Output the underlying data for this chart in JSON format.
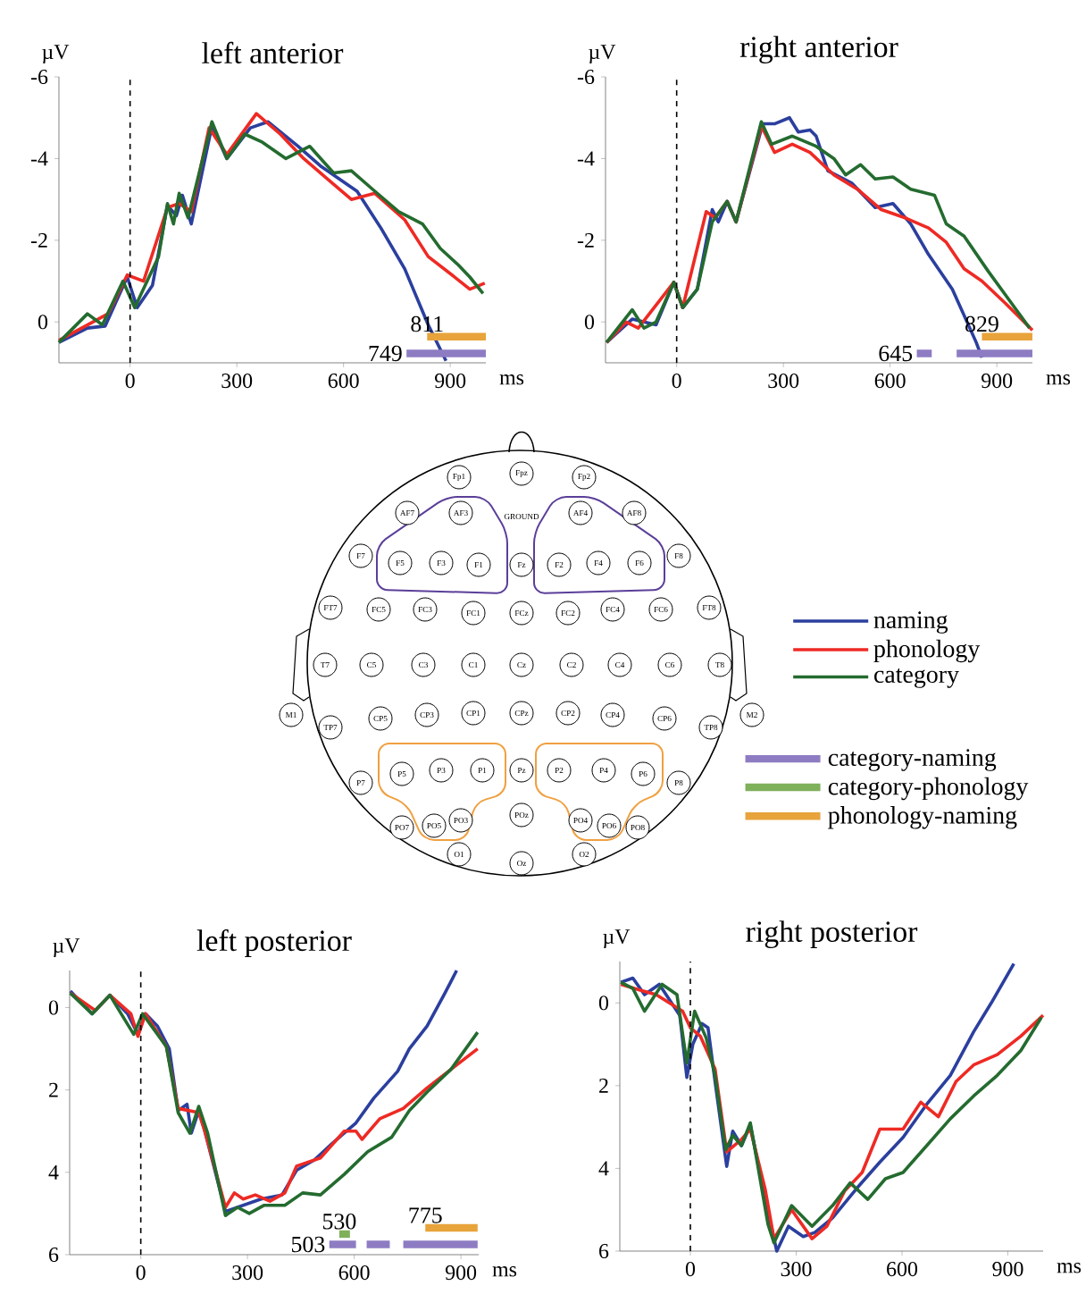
{
  "chart_data": [
    {
      "type": "line",
      "title": "left anterior",
      "xlabel": "ms",
      "ylabel": "µV",
      "xlim": [
        -200,
        1000
      ],
      "ylim": [
        1,
        -6
      ],
      "xticks": [
        0,
        300,
        600,
        900
      ],
      "yticks": [
        -6,
        -4,
        -2,
        0
      ],
      "legend": "right",
      "ref_lines": [
        {
          "axis": "x",
          "value": 0,
          "line_style": "dashed"
        }
      ],
      "annotations": [
        {
          "text": "749",
          "x": 777,
          "y": 0.77
        },
        {
          "text": "811",
          "x": 835,
          "y": 0.36
        }
      ],
      "series": [
        {
          "name": "naming",
          "color": "#2b3f9e",
          "x": [
            -200,
            -120,
            -70,
            -8,
            20,
            63,
            105,
            130,
            147,
            172,
            230,
            272,
            338,
            388,
            472,
            538,
            638,
            705,
            772,
            838,
            888
          ],
          "values": [
            0.5,
            0.15,
            0.1,
            -1.1,
            -0.35,
            -0.9,
            -2.85,
            -2.6,
            -3.1,
            -2.4,
            -4.8,
            -4.0,
            -4.75,
            -4.9,
            -4.3,
            -3.8,
            -3.2,
            -2.3,
            -1.3,
            0.07,
            0.95
          ]
        },
        {
          "name": "phonology",
          "color": "#ee2a24",
          "x": [
            -200,
            -62,
            -8,
            38,
            105,
            138,
            172,
            222,
            272,
            355,
            422,
            488,
            555,
            622,
            688,
            772,
            838,
            905,
            955,
            997
          ],
          "values": [
            0.45,
            -0.2,
            -1.15,
            -1.0,
            -2.8,
            -2.9,
            -2.7,
            -4.75,
            -4.1,
            -5.1,
            -4.6,
            -4.0,
            -3.5,
            -3.0,
            -3.15,
            -2.5,
            -1.6,
            -1.15,
            -0.8,
            -0.95
          ]
        },
        {
          "name": "category",
          "color": "#246b2f",
          "x": [
            -200,
            -120,
            -78,
            -20,
            13,
            80,
            105,
            122,
            138,
            163,
            230,
            272,
            322,
            372,
            438,
            505,
            572,
            622,
            688,
            755,
            822,
            872,
            922,
            955,
            992
          ],
          "values": [
            0.5,
            -0.2,
            0.07,
            -1.0,
            -0.35,
            -1.6,
            -2.9,
            -2.4,
            -3.15,
            -2.55,
            -4.9,
            -4.0,
            -4.6,
            -4.4,
            -4.0,
            -4.3,
            -3.65,
            -3.7,
            -3.2,
            -2.7,
            -2.4,
            -1.8,
            -1.4,
            -1.1,
            -0.7
          ]
        },
        {
          "type": "step",
          "color": "#8e7cc3",
          "x": [
            777,
            1000
          ],
          "values": [
            0.77,
            0.77
          ]
        },
        {
          "type": "step",
          "color": "#e8a33b",
          "x": [
            835,
            1000
          ],
          "values": [
            0.36,
            0.36
          ]
        }
      ]
    },
    {
      "type": "line",
      "title": "right anterior",
      "xlabel": "ms",
      "ylabel": "µV",
      "xlim": [
        -200,
        1000
      ],
      "ylim": [
        1,
        -6
      ],
      "xticks": [
        0,
        300,
        600,
        900
      ],
      "yticks": [
        -6,
        -4,
        -2,
        0
      ],
      "ref_lines": [
        {
          "axis": "x",
          "value": 0,
          "line_style": "dashed"
        }
      ],
      "annotations": [
        {
          "text": "645",
          "x": 675,
          "y": 0.77
        },
        {
          "text": "829",
          "x": 858,
          "y": 0.36
        }
      ],
      "series": [
        {
          "color": "#2b3f9e",
          "x": [
            -197,
            -125,
            -58,
            -8,
            17,
            58,
            100,
            117,
            142,
            167,
            242,
            275,
            317,
            342,
            375,
            392,
            425,
            492,
            558,
            608,
            658,
            708,
            775,
            842,
            858
          ],
          "values": [
            0.5,
            -0.07,
            0.07,
            -0.97,
            -0.35,
            -0.8,
            -2.75,
            -2.45,
            -2.95,
            -2.45,
            -4.85,
            -4.85,
            -5.0,
            -4.65,
            -4.7,
            -4.55,
            -3.7,
            -3.4,
            -2.8,
            -2.9,
            -2.4,
            -1.65,
            -0.8,
            0.5,
            0.87
          ]
        },
        {
          "color": "#ee2a24",
          "x": [
            -197,
            -142,
            -108,
            -8,
            17,
            83,
            108,
            142,
            167,
            238,
            275,
            325,
            375,
            442,
            508,
            575,
            642,
            708,
            758,
            808,
            858,
            925,
            1000
          ],
          "values": [
            0.5,
            0.0,
            0.15,
            -0.97,
            -0.35,
            -2.7,
            -2.55,
            -2.95,
            -2.45,
            -4.8,
            -4.15,
            -4.35,
            -4.15,
            -3.6,
            -3.25,
            -2.75,
            -2.55,
            -2.3,
            -1.95,
            -1.3,
            -1.0,
            -0.45,
            0.2
          ]
        },
        {
          "color": "#246b2f",
          "x": [
            -197,
            -125,
            -92,
            -58,
            -8,
            17,
            58,
            100,
            142,
            167,
            238,
            267,
            325,
            392,
            442,
            475,
            517,
            558,
            608,
            658,
            725,
            758,
            808,
            875,
            942,
            992
          ],
          "values": [
            0.5,
            -0.3,
            0.15,
            0.0,
            -0.97,
            -0.35,
            -0.8,
            -2.45,
            -2.95,
            -2.45,
            -4.9,
            -4.35,
            -4.55,
            -4.3,
            -4.0,
            -3.6,
            -3.85,
            -3.5,
            -3.55,
            -3.25,
            -3.1,
            -2.4,
            -2.1,
            -1.25,
            -0.45,
            0.15
          ]
        },
        {
          "type": "step",
          "color": "#8e7cc3",
          "x": [
            675,
            717,
            null,
            787,
            1000
          ],
          "values": [
            0.77,
            0.77,
            null,
            0.77,
            0.77
          ]
        },
        {
          "type": "step",
          "color": "#e8a33b",
          "x": [
            858,
            1000
          ],
          "values": [
            0.36,
            0.36
          ]
        }
      ]
    },
    {
      "type": "line",
      "title": "left posterior",
      "xlabel": "ms",
      "ylabel": "µV",
      "xlim": [
        -200,
        950
      ],
      "ylim": [
        6,
        -0.9
      ],
      "xticks": [
        0,
        300,
        600,
        900
      ],
      "yticks": [
        0,
        2,
        4,
        6
      ],
      "legend": "top right",
      "ref_lines": [
        {
          "axis": "x",
          "value": 0,
          "line_style": "dashed"
        }
      ],
      "annotations": [
        {
          "text": "503",
          "x": 530,
          "y": 5.75
        },
        {
          "text": "530",
          "x": 558,
          "y": 5.5
        },
        {
          "text": "775",
          "x": 800,
          "y": 5.35
        }
      ],
      "series": [
        {
          "color": "#2b3f9e",
          "x": [
            -198,
            -137,
            -87,
            -37,
            -8,
            13,
            47,
            80,
            105,
            130,
            142,
            163,
            180,
            238,
            288,
            338,
            397,
            438,
            488,
            538,
            605,
            655,
            722,
            755,
            805,
            855,
            888
          ],
          "values": [
            -0.4,
            0.15,
            -0.3,
            0.15,
            0.65,
            0.15,
            0.45,
            1.0,
            2.5,
            2.35,
            3.05,
            2.5,
            3.0,
            4.95,
            4.8,
            4.65,
            4.55,
            3.95,
            3.7,
            3.3,
            2.8,
            2.2,
            1.55,
            1.0,
            0.45,
            -0.35,
            -0.9
          ]
        },
        {
          "color": "#ee2a24",
          "x": [
            -198,
            -128,
            -87,
            -28,
            -8,
            13,
            72,
            105,
            163,
            180,
            238,
            263,
            288,
            322,
            363,
            405,
            438,
            505,
            572,
            605,
            622,
            672,
            738,
            805,
            872,
            947
          ],
          "values": [
            -0.35,
            0.07,
            -0.3,
            0.15,
            0.7,
            0.15,
            0.95,
            2.45,
            2.55,
            3.0,
            4.85,
            4.5,
            4.65,
            4.55,
            4.7,
            4.5,
            3.85,
            3.65,
            3.0,
            3.0,
            3.2,
            2.7,
            2.45,
            1.95,
            1.5,
            1.0
          ]
        },
        {
          "color": "#246b2f",
          "x": [
            -198,
            -137,
            -87,
            -20,
            5,
            72,
            105,
            138,
            163,
            188,
            238,
            272,
            305,
            347,
            405,
            455,
            505,
            572,
            638,
            705,
            755,
            805,
            872,
            947
          ],
          "values": [
            -0.35,
            0.15,
            -0.3,
            0.65,
            0.15,
            0.95,
            2.55,
            3.05,
            2.4,
            3.05,
            5.05,
            4.85,
            5.0,
            4.8,
            4.8,
            4.5,
            4.55,
            4.05,
            3.5,
            3.15,
            2.5,
            2.05,
            1.5,
            0.6
          ]
        },
        {
          "name": "category-naming",
          "type": "step",
          "color": "#8e7cc3",
          "x": [
            530,
            605,
            null,
            635,
            700,
            null,
            738,
            947
          ],
          "values": [
            5.75,
            5.75,
            null,
            5.75,
            5.75,
            null,
            5.75,
            5.75
          ]
        },
        {
          "name": "category-phonology",
          "type": "step",
          "color": "#7fb05a",
          "x": [
            558,
            588
          ],
          "values": [
            5.5,
            5.5
          ]
        },
        {
          "name": "phonology-naming",
          "type": "step",
          "color": "#e8a33b",
          "x": [
            800,
            947
          ],
          "values": [
            5.35,
            5.35
          ]
        }
      ]
    },
    {
      "type": "line",
      "title": "right posterior",
      "xlabel": "ms",
      "ylabel": "µV",
      "xlim": [
        -200,
        1000
      ],
      "ylim": [
        6,
        -1
      ],
      "xticks": [
        0,
        300,
        600,
        900
      ],
      "yticks": [
        0,
        2,
        4,
        6
      ],
      "ref_lines": [
        {
          "axis": "x",
          "value": 0,
          "line_style": "dashed"
        }
      ],
      "series": [
        {
          "color": "#2b3f9e",
          "x": [
            -197,
            -163,
            -130,
            -88,
            -30,
            -10,
            7,
            33,
            50,
            70,
            103,
            120,
            145,
            170,
            212,
            245,
            278,
            320,
            353,
            403,
            470,
            537,
            603,
            670,
            737,
            803,
            853,
            917
          ],
          "values": [
            -0.5,
            -0.6,
            -0.2,
            -0.45,
            0.3,
            1.8,
            1.0,
            0.5,
            0.6,
            1.9,
            3.95,
            3.1,
            3.45,
            2.95,
            4.75,
            6.0,
            5.4,
            5.65,
            5.55,
            5.2,
            4.5,
            3.85,
            3.25,
            2.45,
            1.75,
            0.7,
            0.0,
            -0.95
          ]
        },
        {
          "color": "#ee2a24",
          "x": [
            -197,
            -138,
            -97,
            -22,
            0,
            28,
            70,
            103,
            145,
            170,
            212,
            237,
            287,
            345,
            387,
            437,
            487,
            537,
            603,
            653,
            703,
            753,
            803,
            870,
            937,
            1000
          ],
          "values": [
            -0.45,
            -0.3,
            -0.2,
            0.2,
            0.6,
            0.8,
            1.6,
            3.6,
            3.3,
            3.05,
            4.5,
            5.7,
            5.0,
            5.7,
            5.4,
            4.55,
            4.1,
            3.05,
            3.05,
            2.4,
            2.75,
            1.9,
            1.5,
            1.25,
            0.8,
            0.3
          ]
        },
        {
          "color": "#246b2f",
          "x": [
            -197,
            -163,
            -130,
            -80,
            -38,
            -10,
            12,
            45,
            70,
            100,
            120,
            145,
            170,
            220,
            237,
            287,
            345,
            403,
            453,
            503,
            553,
            603,
            670,
            737,
            803,
            870,
            937,
            995
          ],
          "values": [
            -0.5,
            -0.35,
            0.2,
            -0.45,
            -0.2,
            1.45,
            0.2,
            0.85,
            1.75,
            3.55,
            3.2,
            3.45,
            2.9,
            5.35,
            5.8,
            4.9,
            5.4,
            4.9,
            4.35,
            4.75,
            4.25,
            4.1,
            3.45,
            2.8,
            2.25,
            1.75,
            1.15,
            0.35
          ]
        }
      ]
    },
    {
      "type": "other",
      "annotations": [
        "Fp1",
        "Fpz",
        "Fp2",
        "AF7",
        "AF3",
        "GROUND",
        "AF4",
        "AF8",
        "F7",
        "F5",
        "F3",
        "F1",
        "Fz",
        "F2",
        "F4",
        "F6",
        "F8",
        "FT7",
        "FC5",
        "FC3",
        "FC1",
        "FCz",
        "FC2",
        "FC4",
        "FC6",
        "FT8",
        "M1",
        "T7",
        "C5",
        "C3",
        "C1",
        "Cz",
        "C2",
        "C4",
        "C6",
        "T8",
        "M2",
        "TP7",
        "CP5",
        "CP3",
        "CP1",
        "CPz",
        "CP2",
        "CP4",
        "CP6",
        "TP8",
        "P7",
        "P5",
        "P3",
        "P1",
        "Pz",
        "P2",
        "P4",
        "P6",
        "P8",
        "PO7",
        "PO5",
        "PO3",
        "POz",
        "PO4",
        "PO6",
        "PO8",
        "O1",
        "Oz",
        "O2"
      ]
    }
  ]
}
